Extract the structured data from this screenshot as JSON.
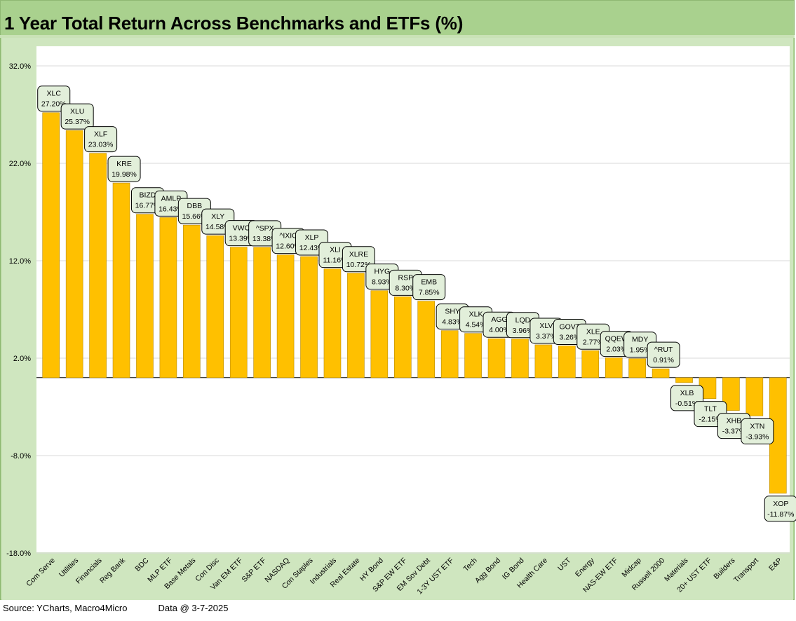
{
  "title": "1 Year Total Return Across Benchmarks and ETFs (%)",
  "footer": {
    "source": "Source: YCharts, Macro4Micro",
    "data_date": "Data @ 3-7-2025"
  },
  "colors": {
    "bar": "#ffc000",
    "bar_stroke": "#b88a00",
    "frame": "#a9d18e",
    "plot_panel": "#cfe6bf",
    "plot_area": "#ffffff",
    "label_box": "#e2efda",
    "gridline": "#d9d9d9"
  },
  "chart_data": {
    "type": "bar",
    "title": "1 Year Total Return Across Benchmarks and ETFs (%)",
    "xlabel": "",
    "ylabel": "",
    "ylim": [
      -18,
      34
    ],
    "yticks": [
      32,
      22,
      12,
      2,
      -8,
      -18
    ],
    "ytick_labels": [
      "32.0%",
      "22.0%",
      "12.0%",
      "2.0%",
      "-8.0%",
      "-18.0%"
    ],
    "grid": true,
    "legend": "none",
    "categories": [
      "Com Serve",
      "Utilities",
      "Financials",
      "Reg Bank",
      "BDC",
      "MLP ETF",
      "Base Metals",
      "Con Disc",
      "Van EM ETF",
      "S&P ETF",
      "NASDAQ",
      "Con Staples",
      "Industrials",
      "Real Estate",
      "HY Bond",
      "S&P EW ETF",
      "EM Sov Debt",
      "1-3Y UST ETF",
      "Tech",
      "Agg Bond",
      "IG Bond",
      "Health Care",
      "UST",
      "Energy",
      "NAS-EW ETF",
      "Midcap",
      "Russell 2000",
      "Materials",
      "20+ UST ETF",
      "Builders",
      "Transport",
      "E&P"
    ],
    "tickers": [
      "XLC",
      "XLU",
      "XLF",
      "KRE",
      "BIZD",
      "AMLP",
      "DBB",
      "XLY",
      "VWO",
      "^SPX",
      "^IXIC",
      "XLP",
      "XLI",
      "XLRE",
      "HYG",
      "RSP",
      "EMB",
      "SHY",
      "XLK",
      "AGG",
      "LQD",
      "XLV",
      "GOVT",
      "XLE",
      "QQEW",
      "MDY",
      "^RUT",
      "XLB",
      "TLT",
      "XHB",
      "XTN",
      "XOP"
    ],
    "values": [
      27.2,
      25.37,
      23.03,
      19.98,
      16.77,
      16.43,
      15.66,
      14.58,
      13.39,
      13.38,
      12.6,
      12.43,
      11.16,
      10.72,
      8.93,
      8.3,
      7.85,
      4.83,
      4.54,
      4.0,
      3.96,
      3.37,
      3.26,
      2.77,
      2.03,
      1.95,
      0.91,
      -0.51,
      -2.15,
      -3.37,
      -3.93,
      -11.87
    ],
    "value_labels": [
      "27.20%",
      "25.37%",
      "23.03%",
      "19.98%",
      "16.77%",
      "16.43%",
      "15.66%",
      "14.58%",
      "13.39%",
      "13.38%",
      "12.60%",
      "12.43%",
      "11.16%",
      "10.72%",
      "8.93%",
      "8.30%",
      "7.85%",
      "4.83%",
      "4.54%",
      "4.00%",
      "3.96%",
      "3.37%",
      "3.26%",
      "2.77%",
      "2.03%",
      "1.95%",
      "0.91%",
      "-0.51%",
      "-2.15%",
      "-3.37%",
      "-3.93%",
      "-11.87%"
    ]
  }
}
